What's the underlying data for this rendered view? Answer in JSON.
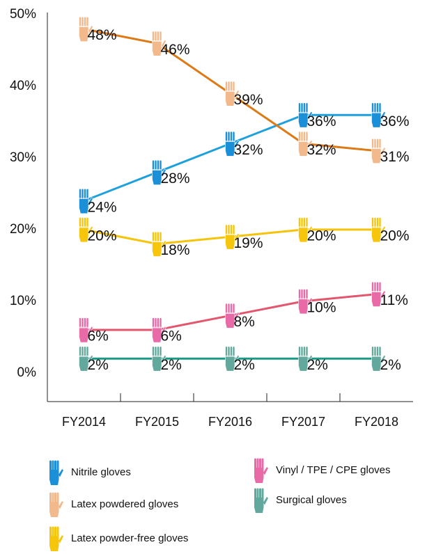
{
  "chart_data": {
    "type": "line",
    "categories": [
      "FY2014",
      "FY2015",
      "FY2016",
      "FY2017",
      "FY2018"
    ],
    "ylim": [
      -4,
      50.3
    ],
    "yticks": [
      {
        "value": 0,
        "label": "0%"
      },
      {
        "value": 10,
        "label": "10%"
      },
      {
        "value": 20,
        "label": "20%"
      },
      {
        "value": 30,
        "label": "30%"
      },
      {
        "value": 40,
        "label": "40%"
      },
      {
        "value": 50,
        "label": "50%"
      }
    ],
    "series": [
      {
        "name": "Nitrile gloves",
        "color": "#1ea0dc",
        "marker_color": "#1b8fd8",
        "values": [
          24,
          28,
          32,
          36,
          36
        ],
        "value_labels": [
          "24%",
          "28%",
          "32%",
          "36%",
          "36%"
        ]
      },
      {
        "name": "Latex powdered gloves",
        "color": "#dc7a16",
        "marker_color": "#f1b98c",
        "values": [
          48,
          46,
          39,
          32,
          31
        ],
        "value_labels": [
          "48%",
          "46%",
          "39%",
          "32%",
          "31%"
        ]
      },
      {
        "name": "Latex powder-free gloves",
        "color": "#f5c40a",
        "marker_color": "#f6c60c",
        "values": [
          20,
          18,
          19,
          20,
          20
        ],
        "value_labels": [
          "20%",
          "18%",
          "19%",
          "20%",
          "20%"
        ]
      },
      {
        "name": "Vinyl / TPE / CPE gloves",
        "color": "#e2566e",
        "marker_color": "#e86aa6",
        "values": [
          6,
          6,
          8,
          10,
          11
        ],
        "value_labels": [
          "6%",
          "6%",
          "8%",
          "10%",
          "11%"
        ]
      },
      {
        "name": "Surgical gloves",
        "color": "#1a9a84",
        "marker_color": "#62a89d",
        "values": [
          2,
          2,
          2,
          2,
          2
        ],
        "value_labels": [
          "2%",
          "2%",
          "2%",
          "2%",
          "2%"
        ]
      }
    ]
  }
}
